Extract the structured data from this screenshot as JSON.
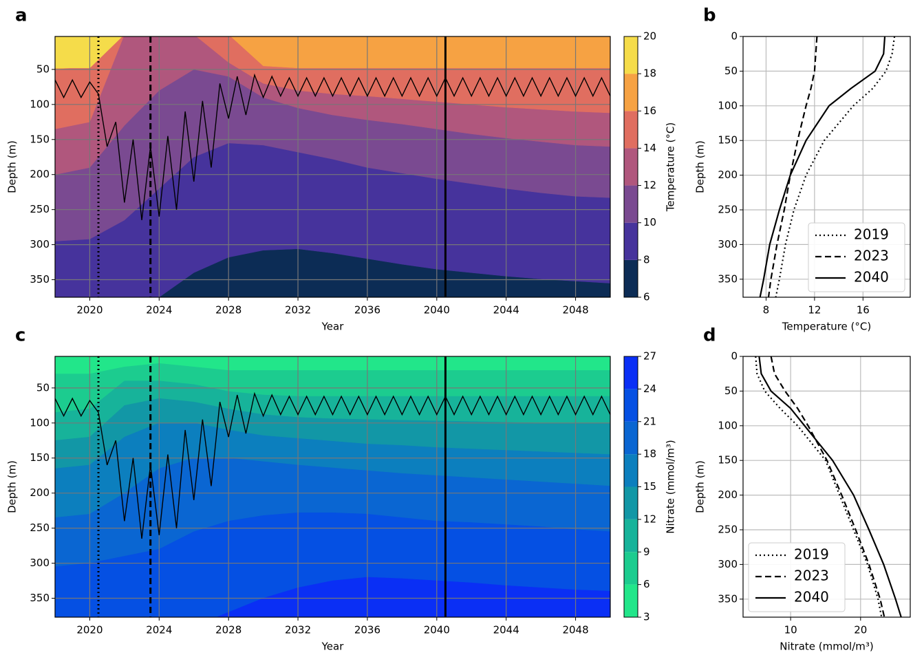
{
  "chart_data": [
    {
      "type": "contour",
      "panel_label": "a",
      "xlabel": "Year",
      "ylabel": "Depth (m)",
      "xlim": [
        2018,
        2050
      ],
      "ylim": [
        3,
        375
      ],
      "y_inverted": true,
      "xticks": [
        2020,
        2024,
        2028,
        2032,
        2036,
        2040,
        2044,
        2048
      ],
      "yticks": [
        50,
        100,
        150,
        200,
        250,
        300,
        350
      ],
      "grid": true,
      "colorbar": {
        "label": "Temperature (°C)",
        "levels": [
          6,
          8,
          10,
          12,
          14,
          16,
          18,
          20
        ],
        "colors": [
          "#0c2c55",
          "#46339c",
          "#7a4a91",
          "#b0577d",
          "#e06e60",
          "#f6a243",
          "#f5dc4a"
        ]
      },
      "contour_fill": "above",
      "contour_x": [
        2018,
        2020,
        2022,
        2024,
        2026,
        2028,
        2030,
        2032,
        2034,
        2036,
        2038,
        2040,
        2042,
        2044,
        2046,
        2048,
        2050
      ],
      "contours": [
        [
          420,
          420,
          410,
          375,
          340,
          318,
          308,
          306,
          312,
          320,
          328,
          335,
          340,
          345,
          349,
          352,
          355
        ],
        [
          295,
          292,
          265,
          220,
          175,
          155,
          158,
          168,
          178,
          190,
          198,
          206,
          213,
          220,
          226,
          231,
          233
        ],
        [
          200,
          190,
          130,
          80,
          50,
          60,
          90,
          105,
          115,
          122,
          128,
          135,
          142,
          148,
          153,
          158,
          160
        ],
        [
          135,
          125,
          0,
          0,
          0,
          40,
          70,
          80,
          85,
          88,
          92,
          96,
          100,
          104,
          107,
          110,
          112
        ],
        [
          50,
          45,
          0,
          0,
          0,
          0,
          45,
          48,
          48,
          48,
          48,
          48,
          48,
          48,
          48,
          48,
          48
        ],
        [
          48,
          48,
          0,
          0,
          0,
          0,
          0,
          0,
          0,
          0,
          0,
          0,
          0,
          0,
          0,
          0,
          0
        ]
      ],
      "mixed_layer": {
        "color": "#000000",
        "x": [
          2018,
          2018.5,
          2019,
          2019.5,
          2020,
          2020.5,
          2021,
          2021.5,
          2022,
          2022.5,
          2023,
          2023.5,
          2024,
          2024.5,
          2025,
          2025.5,
          2026,
          2026.5,
          2027,
          2027.5,
          2028,
          2028.5,
          2029,
          2029.5,
          2030,
          2030.5,
          2031,
          2031.5,
          2032,
          2032.5,
          2033,
          2033.5,
          2034,
          2034.5,
          2035,
          2035.5,
          2036,
          2036.5,
          2037,
          2037.5,
          2038,
          2038.5,
          2039,
          2039.5,
          2040,
          2040.5,
          2041,
          2041.5,
          2042,
          2042.5,
          2043,
          2043.5,
          2044,
          2044.5,
          2045,
          2045.5,
          2046,
          2046.5,
          2047,
          2047.5,
          2048,
          2048.5,
          2049,
          2049.5,
          2050
        ],
        "values": [
          65,
          90,
          65,
          90,
          68,
          85,
          160,
          125,
          240,
          150,
          265,
          160,
          260,
          145,
          250,
          110,
          210,
          95,
          190,
          70,
          120,
          60,
          115,
          58,
          90,
          60,
          88,
          62,
          88,
          62,
          88,
          62,
          88,
          62,
          88,
          62,
          88,
          62,
          88,
          62,
          88,
          62,
          88,
          62,
          88,
          62,
          88,
          62,
          88,
          62,
          88,
          62,
          88,
          62,
          88,
          62,
          88,
          62,
          88,
          62,
          88,
          62,
          88,
          62,
          88
        ]
      },
      "markers": [
        {
          "x": 2020.5,
          "style": "dotted"
        },
        {
          "x": 2023.5,
          "style": "dashed"
        },
        {
          "x": 2040.5,
          "style": "solid"
        }
      ]
    },
    {
      "type": "line",
      "panel_label": "b",
      "xlabel": "Temperature (°C)",
      "ylabel": "Depth (m)",
      "xlim": [
        6.1,
        19.9
      ],
      "ylim": [
        0,
        376
      ],
      "y_inverted": true,
      "xticks": [
        8,
        12,
        16
      ],
      "yticks": [
        0,
        50,
        100,
        150,
        200,
        250,
        300,
        350
      ],
      "grid": true,
      "legend": "lower right",
      "y": [
        0,
        25,
        50,
        75,
        100,
        150,
        200,
        250,
        300,
        350,
        376
      ],
      "series": [
        {
          "name": "2019",
          "color": "#000000",
          "style": "dotted",
          "values": [
            18.6,
            18.4,
            17.9,
            16.8,
            15.2,
            12.8,
            11.3,
            10.3,
            9.6,
            9.1,
            8.8
          ]
        },
        {
          "name": "2023",
          "color": "#000000",
          "style": "dashed",
          "values": [
            12.2,
            12.1,
            12.0,
            11.7,
            11.3,
            10.6,
            10.0,
            9.5,
            8.9,
            8.4,
            8.2
          ]
        },
        {
          "name": "2040",
          "color": "#000000",
          "style": "solid",
          "values": [
            17.8,
            17.7,
            17.0,
            15.0,
            13.2,
            11.3,
            10.0,
            9.1,
            8.3,
            7.8,
            7.5
          ]
        }
      ]
    },
    {
      "type": "contour",
      "panel_label": "c",
      "xlabel": "Year",
      "ylabel": "Depth (m)",
      "xlim": [
        2018,
        2050
      ],
      "ylim": [
        5,
        377
      ],
      "y_inverted": true,
      "xticks": [
        2020,
        2024,
        2028,
        2032,
        2036,
        2040,
        2044,
        2048
      ],
      "yticks": [
        50,
        100,
        150,
        200,
        250,
        300,
        350
      ],
      "grid": true,
      "colorbar": {
        "label": "Nitrate (mmol/m³)",
        "levels": [
          3,
          6,
          9,
          12,
          15,
          18,
          21,
          24,
          27
        ],
        "colors": [
          "#22e68a",
          "#1ccc8f",
          "#17b39a",
          "#1297a6",
          "#0c7fbe",
          "#0a66d2",
          "#0550e3",
          "#0a2ff5"
        ]
      },
      "contour_fill": "below",
      "contour_x": [
        2018,
        2020,
        2022,
        2024,
        2026,
        2028,
        2030,
        2032,
        2034,
        2036,
        2038,
        2040,
        2042,
        2044,
        2046,
        2048,
        2050
      ],
      "contours": [
        [
          30,
          30,
          20,
          15,
          20,
          25,
          25,
          25,
          25,
          25,
          25,
          25,
          25,
          25,
          25,
          25,
          25
        ],
        [
          85,
          80,
          40,
          40,
          45,
          55,
          60,
          62,
          62,
          62,
          62,
          62,
          62,
          62,
          62,
          62,
          62
        ],
        [
          125,
          120,
          75,
          65,
          70,
          80,
          88,
          92,
          94,
          95,
          96,
          97,
          98,
          99,
          100,
          100,
          100
        ],
        [
          165,
          160,
          120,
          100,
          100,
          110,
          118,
          122,
          126,
          130,
          132,
          135,
          137,
          139,
          141,
          143,
          145
        ],
        [
          235,
          230,
          200,
          165,
          150,
          150,
          155,
          160,
          164,
          168,
          172,
          175,
          178,
          181,
          184,
          187,
          190
        ],
        [
          305,
          300,
          290,
          280,
          255,
          240,
          232,
          228,
          228,
          230,
          235,
          240,
          242,
          245,
          248,
          252,
          255
        ],
        [
          420,
          420,
          420,
          410,
          390,
          370,
          350,
          335,
          325,
          320,
          322,
          325,
          328,
          332,
          335,
          338,
          340
        ]
      ],
      "mixed_layer": {
        "color": "#000000",
        "x": [
          2018,
          2018.5,
          2019,
          2019.5,
          2020,
          2020.5,
          2021,
          2021.5,
          2022,
          2022.5,
          2023,
          2023.5,
          2024,
          2024.5,
          2025,
          2025.5,
          2026,
          2026.5,
          2027,
          2027.5,
          2028,
          2028.5,
          2029,
          2029.5,
          2030,
          2030.5,
          2031,
          2031.5,
          2032,
          2032.5,
          2033,
          2033.5,
          2034,
          2034.5,
          2035,
          2035.5,
          2036,
          2036.5,
          2037,
          2037.5,
          2038,
          2038.5,
          2039,
          2039.5,
          2040,
          2040.5,
          2041,
          2041.5,
          2042,
          2042.5,
          2043,
          2043.5,
          2044,
          2044.5,
          2045,
          2045.5,
          2046,
          2046.5,
          2047,
          2047.5,
          2048,
          2048.5,
          2049,
          2049.5,
          2050
        ],
        "values": [
          65,
          90,
          65,
          90,
          68,
          85,
          160,
          125,
          240,
          150,
          265,
          160,
          260,
          145,
          250,
          110,
          210,
          95,
          190,
          70,
          120,
          60,
          115,
          58,
          90,
          60,
          88,
          62,
          88,
          62,
          88,
          62,
          88,
          62,
          88,
          62,
          88,
          62,
          88,
          62,
          88,
          62,
          88,
          62,
          88,
          62,
          88,
          62,
          88,
          62,
          88,
          62,
          88,
          62,
          88,
          62,
          88,
          62,
          88,
          62,
          88,
          62,
          88,
          62,
          88
        ]
      },
      "markers": [
        {
          "x": 2020.5,
          "style": "dotted"
        },
        {
          "x": 2023.5,
          "style": "dashed"
        },
        {
          "x": 2040.5,
          "style": "solid"
        }
      ]
    },
    {
      "type": "line",
      "panel_label": "d",
      "xlabel": "Nitrate (mmol/m³)",
      "ylabel": "Depth (m)",
      "xlim": [
        3.2,
        27.1
      ],
      "ylim": [
        0,
        376
      ],
      "y_inverted": true,
      "xticks": [
        10,
        20
      ],
      "yticks": [
        0,
        50,
        100,
        150,
        200,
        250,
        300,
        350
      ],
      "grid": true,
      "legend": "lower left",
      "y": [
        0,
        25,
        50,
        75,
        100,
        150,
        200,
        250,
        300,
        350,
        376
      ],
      "series": [
        {
          "name": "2019",
          "color": "#000000",
          "style": "dotted",
          "values": [
            5.0,
            5.2,
            6.3,
            8.5,
            11.0,
            15.0,
            17.0,
            19.0,
            21.0,
            22.5,
            23.0
          ]
        },
        {
          "name": "2023",
          "color": "#000000",
          "style": "dashed",
          "values": [
            7.2,
            7.7,
            9.2,
            11.0,
            12.5,
            15.2,
            17.3,
            19.3,
            21.2,
            22.8,
            23.4
          ]
        },
        {
          "name": "2040",
          "color": "#000000",
          "style": "solid",
          "values": [
            5.5,
            5.8,
            7.2,
            10.0,
            12.0,
            16.0,
            19.0,
            21.2,
            23.3,
            25.0,
            25.8
          ]
        }
      ]
    }
  ]
}
